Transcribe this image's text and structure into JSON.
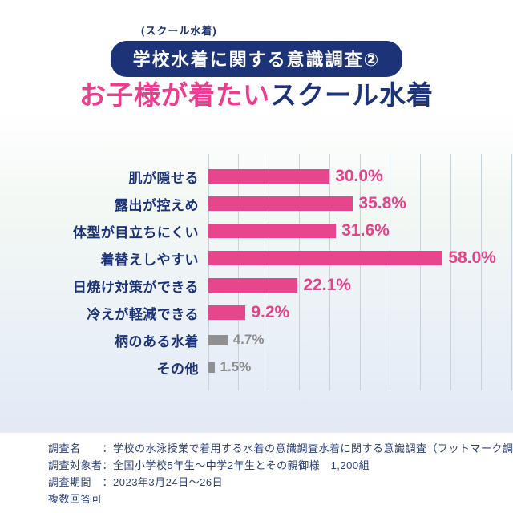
{
  "header": {
    "eyebrow": "(スクール水着)",
    "badge": "学校水着に関する意識調査②",
    "title_accent": "お子様が着たい",
    "title_rest": "スクール水着"
  },
  "chart_data": {
    "type": "bar",
    "orientation": "horizontal",
    "title": "お子様が着たいスクール水着",
    "categories": [
      "肌が隠せる",
      "露出が控えめ",
      "体型が目立ちにくい",
      "着替えしやすい",
      "日焼け対策ができる",
      "冷えが軽減できる",
      "柄のある水着",
      "その他"
    ],
    "values": [
      30.0,
      35.8,
      31.6,
      58.0,
      22.1,
      9.2,
      4.7,
      1.5
    ],
    "value_labels": [
      "30.0%",
      "35.8%",
      "31.6%",
      "58.0%",
      "22.1%",
      "9.2%",
      "4.7%",
      "1.5%"
    ],
    "highlighted": [
      true,
      true,
      true,
      true,
      true,
      true,
      false,
      false
    ],
    "xlim": [
      0,
      75
    ],
    "gridline_count": 11,
    "grid": true,
    "legend": "none",
    "colors": {
      "bar_main": "#e8468c",
      "bar_muted": "#909090",
      "value_main": "#e8418a",
      "value_muted": "#8b8b8b",
      "label_navy": "#1c3377",
      "gridline": "#c8d2db"
    }
  },
  "footer": {
    "lines": [
      "調査名　　：学校の水泳授業で着用する水着の意識調査水着に関する意識調査（フットマーク調べ）",
      "調査対象者：全国小学校5年生〜中学2年生とその親御様　1,200組",
      "調査期間　：2023年3月24日〜26日",
      "複数回答可"
    ]
  }
}
